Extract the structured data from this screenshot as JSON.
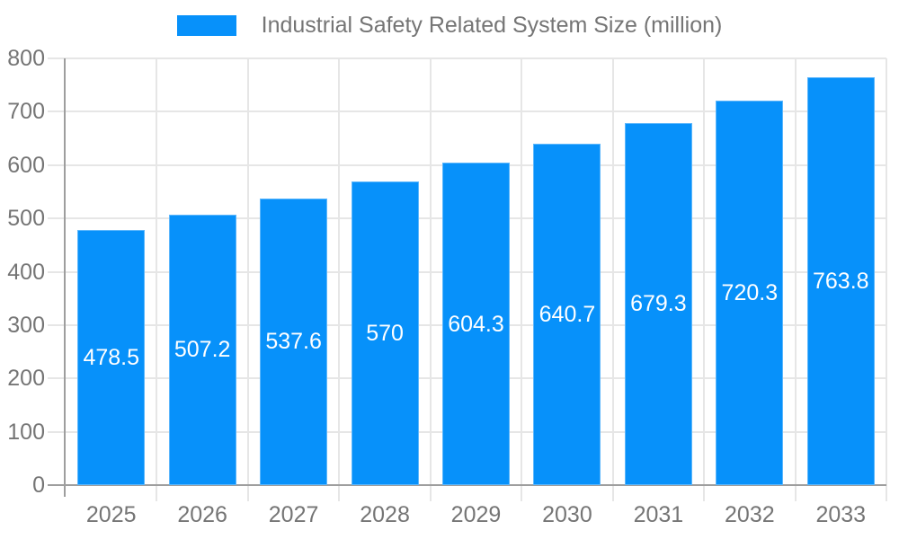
{
  "chart_data": {
    "type": "bar",
    "title": "Industrial Safety Related System Size (million)",
    "legend": [
      "Industrial Safety Related System Size (million)"
    ],
    "legend_position": "top-center",
    "categories": [
      "2025",
      "2026",
      "2027",
      "2028",
      "2029",
      "2030",
      "2031",
      "2032",
      "2033"
    ],
    "series": [
      {
        "name": "Industrial Safety Related System Size (million)",
        "values": [
          478.5,
          507.2,
          537.6,
          570,
          604.3,
          640.7,
          679.3,
          720.3,
          763.8
        ]
      }
    ],
    "xlabel": "",
    "ylabel": "",
    "ylim": [
      0,
      800
    ],
    "y_ticks": [
      0,
      100,
      200,
      300,
      400,
      500,
      600,
      700,
      800
    ],
    "grid": true,
    "bar_color": "#0791fa",
    "value_label_color": "#ffffff",
    "axis_text_color": "#757575",
    "axis_line_color": "#9e9e9e",
    "grid_color": "#e6e6e6",
    "background_color": "#ffffff"
  }
}
